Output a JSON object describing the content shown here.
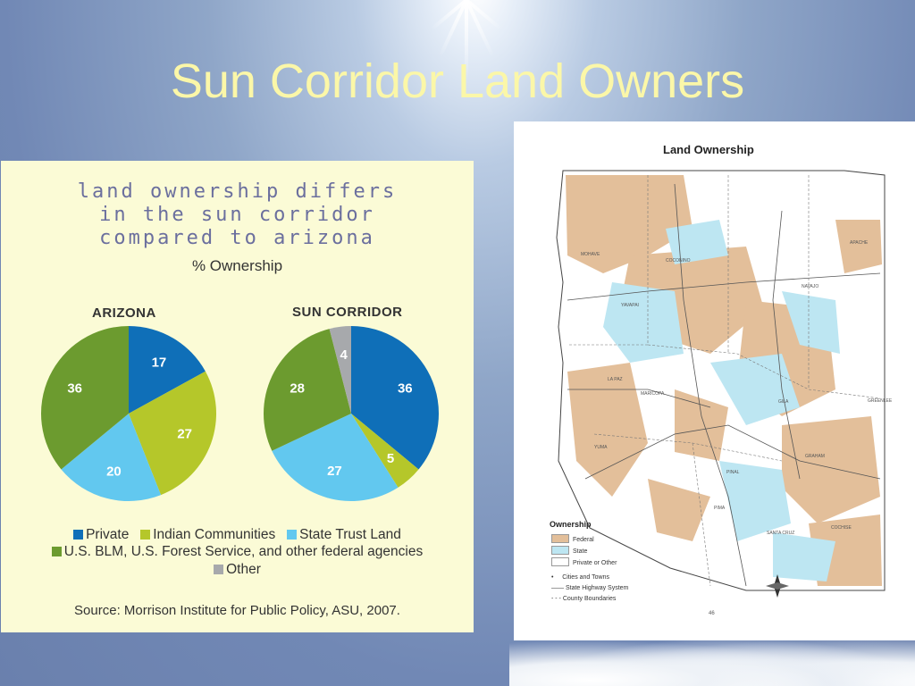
{
  "slide": {
    "title": "Sun Corridor Land Owners"
  },
  "infographic": {
    "heading_lines": [
      "Land Ownership Differs",
      "in the Sun Corridor",
      "Compared to Arizona"
    ],
    "subtitle": "% Ownership",
    "source": "Source: Morrison Institute for Public Policy, ASU, 2007.",
    "legend": {
      "private": "Private",
      "indian": "Indian Communities",
      "state": "State Trust Land",
      "federal": "U.S. BLM, U.S. Forest Service, and other federal agencies",
      "other": "Other"
    }
  },
  "colors": {
    "private": "#0f6fb8",
    "indian": "#b5c72a",
    "state": "#62c8ef",
    "federal": "#6c9b2f",
    "other": "#a7a9ac",
    "map_federal": "#e3bf9a",
    "map_state": "#bde6f2"
  },
  "chart_data": [
    {
      "type": "pie",
      "title": "ARIZONA",
      "slices": [
        {
          "name": "Private",
          "value": 17
        },
        {
          "name": "Indian Communities",
          "value": 27
        },
        {
          "name": "State Trust Land",
          "value": 20
        },
        {
          "name": "U.S. BLM, U.S. Forest Service, and other federal agencies",
          "value": 36
        }
      ]
    },
    {
      "type": "pie",
      "title": "SUN CORRIDOR",
      "slices": [
        {
          "name": "Private",
          "value": 36
        },
        {
          "name": "Indian Communities",
          "value": 5
        },
        {
          "name": "State Trust Land",
          "value": 27
        },
        {
          "name": "U.S. BLM, U.S. Forest Service, and other federal agencies",
          "value": 28
        },
        {
          "name": "Other",
          "value": 4
        }
      ]
    }
  ],
  "map": {
    "title": "Land Ownership",
    "legend_title": "Ownership",
    "legend_items": [
      "Federal",
      "State",
      "Private or Other"
    ],
    "line_items": [
      "Cities and Towns",
      "State Highway System",
      "County Boundaries"
    ],
    "counties": [
      "MOHAVE",
      "COCONINO",
      "NAVAJO",
      "APACHE",
      "YAVAPAI",
      "LA PAZ",
      "MARICOPA",
      "GILA",
      "GREENLEE",
      "YUMA",
      "PINAL",
      "GRAHAM",
      "PIMA",
      "SANTA CRUZ",
      "COCHISE"
    ],
    "page_number": "46"
  }
}
